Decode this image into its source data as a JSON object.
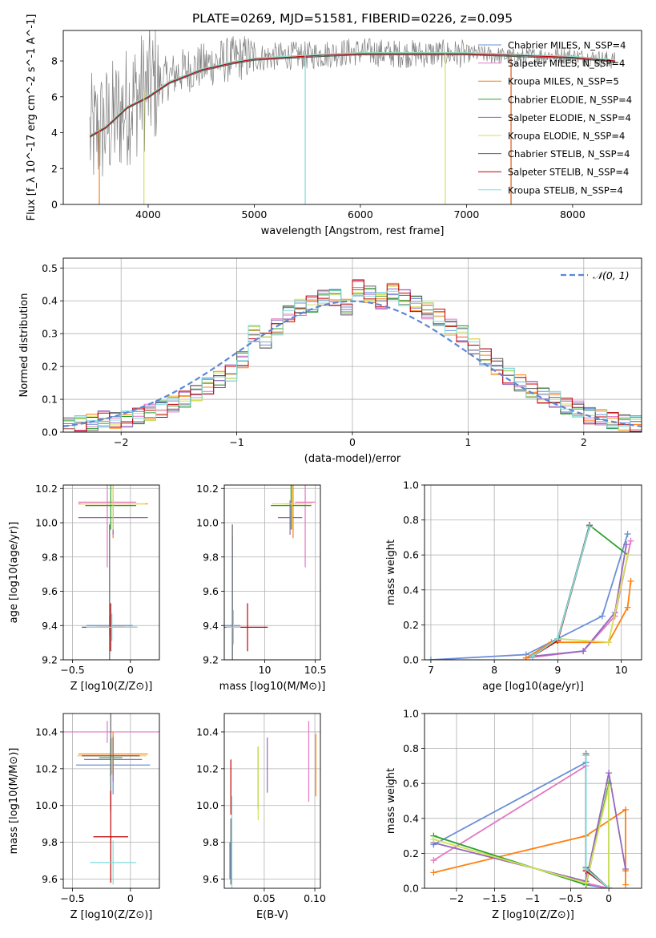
{
  "figure_title": "PLATE=0269, MJD=51581, FIBERID=0226, z=0.095",
  "colors": {
    "Chabrier MILES": "#6a8fd8",
    "Salpeter MILES": "#e377c2",
    "Kroupa MILES": "#ff7f0e",
    "Chabrier ELODIE": "#2ca02c",
    "Salpeter ELODIE": "#9467bd",
    "Kroupa ELODIE": "#d4e157",
    "Chabrier STELIB": "#606060",
    "Salpeter STELIB": "#c00000",
    "Kroupa STELIB": "#7fdcdc"
  },
  "chart_data": [
    {
      "id": "spectrum",
      "type": "line",
      "title": "",
      "xlabel": "wavelength [Angstrom, rest frame]",
      "ylabel": "Flux [f_λ 10^-17 erg cm^-2 s^-1 A^-1]",
      "xlim": [
        3200,
        8650
      ],
      "ylim": [
        0,
        9.7
      ],
      "xticks": [
        4000,
        5000,
        6000,
        7000,
        8000
      ],
      "yticks": [
        0,
        2,
        4,
        6,
        8
      ],
      "grid": false,
      "legend_position": "right",
      "legend": [
        "Chabrier MILES, N_SSP=4",
        "Salpeter MILES, N_SSP=4",
        "Kroupa MILES, N_SSP=5",
        "Chabrier ELODIE, N_SSP=4",
        "Salpeter ELODIE, N_SSP=4",
        "Kroupa ELODIE, N_SSP=4",
        "Chabrier STELIB, N_SSP=4",
        "Salpeter STELIB, N_SSP=4",
        "Kroupa STELIB, N_SSP=4"
      ],
      "data_envelope": {
        "x": [
          3450,
          3550,
          3650,
          3750,
          3850,
          3950,
          4100,
          4300,
          4500,
          4700,
          4900,
          5100,
          5300,
          5500,
          5700,
          5900,
          6100,
          6300,
          6500,
          6700,
          6900,
          7100,
          7300,
          7500,
          7700,
          7900,
          8100,
          8300,
          8400
        ],
        "y": [
          3.8,
          4.2,
          4.6,
          5.2,
          5.8,
          6.3,
          6.8,
          7.4,
          7.7,
          8.0,
          8.2,
          8.2,
          8.3,
          8.3,
          8.4,
          8.5,
          8.5,
          8.4,
          8.4,
          8.4,
          8.4,
          8.4,
          8.3,
          8.2,
          8.3,
          8.3,
          8.2,
          8.1,
          8.0
        ]
      },
      "model_line": {
        "x": [
          3450,
          3600,
          3800,
          4000,
          4200,
          4500,
          4800,
          5000,
          5300,
          5600,
          6000,
          6500,
          7000,
          7500,
          8000,
          8400
        ],
        "y": [
          3.8,
          4.3,
          5.4,
          6.0,
          6.8,
          7.5,
          7.9,
          8.1,
          8.2,
          8.3,
          8.4,
          8.4,
          8.4,
          8.3,
          8.2,
          8.0
        ]
      }
    },
    {
      "id": "residuals",
      "type": "histogram",
      "xlabel": "(data-model)/error",
      "ylabel": "Normed distribution",
      "xlim": [
        -2.5,
        2.5
      ],
      "ylim": [
        0,
        0.53
      ],
      "xticks": [
        -2,
        -1,
        0,
        1,
        2
      ],
      "yticks": [
        0.0,
        0.1,
        0.2,
        0.3,
        0.4,
        0.5
      ],
      "grid": true,
      "legend": [
        "𝒩(0, 1)"
      ],
      "legend_position": "top-right",
      "bins": [
        -2.5,
        -2.4,
        -2.3,
        -2.2,
        -2.1,
        -2.0,
        -1.9,
        -1.8,
        -1.7,
        -1.6,
        -1.5,
        -1.4,
        -1.3,
        -1.2,
        -1.1,
        -1.0,
        -0.9,
        -0.8,
        -0.7,
        -0.6,
        -0.5,
        -0.4,
        -0.3,
        -0.2,
        -0.1,
        0.0,
        0.1,
        0.2,
        0.3,
        0.4,
        0.5,
        0.6,
        0.7,
        0.8,
        0.9,
        1.0,
        1.1,
        1.2,
        1.3,
        1.4,
        1.5,
        1.6,
        1.7,
        1.8,
        1.9,
        2.0,
        2.1,
        2.2,
        2.3,
        2.4,
        2.5
      ],
      "hist_mean": [
        0.02,
        0.025,
        0.03,
        0.04,
        0.035,
        0.04,
        0.05,
        0.06,
        0.07,
        0.085,
        0.1,
        0.12,
        0.14,
        0.16,
        0.18,
        0.22,
        0.3,
        0.28,
        0.32,
        0.36,
        0.38,
        0.39,
        0.41,
        0.41,
        0.38,
        0.44,
        0.42,
        0.4,
        0.43,
        0.41,
        0.39,
        0.37,
        0.35,
        0.32,
        0.3,
        0.26,
        0.23,
        0.2,
        0.17,
        0.15,
        0.13,
        0.11,
        0.1,
        0.08,
        0.07,
        0.05,
        0.045,
        0.035,
        0.03,
        0.025
      ],
      "normal": {
        "mu": 0,
        "sigma": 1
      }
    },
    {
      "id": "age_vs_Z",
      "type": "errorbar",
      "xlabel": "Z [log10(Z/Z⊙)]",
      "ylabel": "age  [log10(age/yr)]",
      "xlim": [
        -0.58,
        0.25
      ],
      "ylim": [
        9.2,
        10.22
      ],
      "xticks": [
        -0.5,
        0.0
      ],
      "yticks": [
        9.2,
        9.4,
        9.6,
        9.8,
        10.0,
        10.2
      ],
      "grid": true,
      "points": [
        {
          "model": "Chabrier MILES",
          "x": -0.18,
          "xerr": 0.2,
          "y": 9.4,
          "yerr": 0.06
        },
        {
          "model": "Salpeter MILES",
          "x": -0.2,
          "xerr": 0.25,
          "y": 10.12,
          "yerr": 0.38
        },
        {
          "model": "Kroupa MILES",
          "x": -0.15,
          "xerr": 0.3,
          "y": 10.11,
          "yerr": 0.2
        },
        {
          "model": "Chabrier ELODIE",
          "x": -0.17,
          "xerr": 0.22,
          "y": 10.1,
          "yerr": 0.14
        },
        {
          "model": "Salpeter ELODIE",
          "x": -0.15,
          "xerr": 0.3,
          "y": 10.03,
          "yerr": 0.1
        },
        {
          "model": "Kroupa ELODIE",
          "x": -0.15,
          "xerr": 0.28,
          "y": 10.11,
          "yerr": 0.15
        },
        {
          "model": "Chabrier STELIB",
          "x": -0.18,
          "xerr": 0.24,
          "y": 9.39,
          "yerr": 0.6
        },
        {
          "model": "Salpeter STELIB",
          "x": -0.17,
          "xerr": 0.12,
          "y": 9.39,
          "yerr": 0.14
        },
        {
          "model": "Kroupa STELIB",
          "x": -0.16,
          "xerr": 0.22,
          "y": 9.39,
          "yerr": 0.08
        }
      ]
    },
    {
      "id": "age_vs_mass",
      "type": "errorbar",
      "xlabel": "mass [log10(M/M⊙)]",
      "ylabel": "",
      "xlim": [
        9.6,
        10.55
      ],
      "ylim": [
        9.2,
        10.22
      ],
      "xticks": [
        10.0,
        10.5
      ],
      "yticks": [
        9.2,
        9.4,
        9.6,
        9.8,
        10.0,
        10.2
      ],
      "grid": true,
      "points": [
        {
          "model": "Chabrier MILES",
          "x": 9.68,
          "xerr": 0.08,
          "y": 9.4,
          "yerr": 0.52
        },
        {
          "model": "Salpeter MILES",
          "x": 10.4,
          "xerr": 0.1,
          "y": 10.12,
          "yerr": 0.38
        },
        {
          "model": "Kroupa MILES",
          "x": 10.28,
          "xerr": 0.1,
          "y": 10.11,
          "yerr": 0.2
        },
        {
          "model": "Chabrier ELODIE",
          "x": 10.26,
          "xerr": 0.2,
          "y": 10.1,
          "yerr": 0.14
        },
        {
          "model": "Salpeter ELODIE",
          "x": 10.25,
          "xerr": 0.12,
          "y": 10.03,
          "yerr": 0.1
        },
        {
          "model": "Kroupa ELODIE",
          "x": 10.27,
          "xerr": 0.2,
          "y": 10.11,
          "yerr": 0.15
        },
        {
          "model": "Chabrier STELIB",
          "x": 9.68,
          "xerr": 0.08,
          "y": 9.39,
          "yerr": 0.6
        },
        {
          "model": "Salpeter STELIB",
          "x": 9.83,
          "xerr": 0.2,
          "y": 9.39,
          "yerr": 0.14
        },
        {
          "model": "Kroupa STELIB",
          "x": 9.69,
          "xerr": 0.07,
          "y": 9.39,
          "yerr": 0.1
        }
      ]
    },
    {
      "id": "mass_weight_vs_age",
      "type": "line",
      "xlabel": "age  [log10(age/yr)]",
      "ylabel": "mass weight",
      "xlim": [
        6.9,
        10.32
      ],
      "ylim": [
        0,
        1
      ],
      "xticks": [
        7,
        8,
        9,
        10
      ],
      "yticks": [
        0.0,
        0.2,
        0.4,
        0.6,
        0.8,
        1.0
      ],
      "grid": true,
      "series": [
        {
          "model": "Chabrier MILES",
          "x": [
            7.0,
            8.5,
            9.7,
            10.1
          ],
          "y": [
            0.0,
            0.03,
            0.25,
            0.72
          ]
        },
        {
          "model": "Salpeter MILES",
          "x": [
            8.5,
            9.4,
            9.9,
            10.15
          ],
          "y": [
            0.01,
            0.05,
            0.25,
            0.68
          ]
        },
        {
          "model": "Kroupa MILES",
          "x": [
            8.5,
            8.9,
            9.8,
            10.1,
            10.15
          ],
          "y": [
            0.01,
            0.1,
            0.1,
            0.3,
            0.45
          ]
        },
        {
          "model": "Chabrier ELODIE",
          "x": [
            8.6,
            9.0,
            9.5,
            10.1
          ],
          "y": [
            0.02,
            0.12,
            0.77,
            0.6
          ]
        },
        {
          "model": "Salpeter ELODIE",
          "x": [
            8.6,
            9.4,
            9.9,
            10.08
          ],
          "y": [
            0.02,
            0.05,
            0.27,
            0.66
          ]
        },
        {
          "model": "Kroupa ELODIE",
          "x": [
            8.6,
            9.0,
            9.8,
            10.1
          ],
          "y": [
            0.02,
            0.12,
            0.1,
            0.6
          ]
        },
        {
          "model": "Chabrier STELIB",
          "x": [
            8.6,
            9.0,
            9.5
          ],
          "y": [
            0.02,
            0.12,
            0.77
          ]
        },
        {
          "model": "Salpeter STELIB",
          "x": [
            8.6,
            9.0,
            9.5
          ],
          "y": [
            0.02,
            0.11,
            0.76
          ]
        },
        {
          "model": "Kroupa STELIB",
          "x": [
            8.6,
            9.0,
            9.5
          ],
          "y": [
            0.02,
            0.12,
            0.76
          ]
        }
      ]
    },
    {
      "id": "mass_vs_Z",
      "type": "errorbar",
      "xlabel": "Z [log10(Z/Z⊙)]",
      "ylabel": "mass [log10(M/M⊙)]",
      "xlim": [
        -0.58,
        0.25
      ],
      "ylim": [
        9.55,
        10.5
      ],
      "xticks": [
        -0.5,
        0.0
      ],
      "yticks": [
        9.6,
        9.8,
        10.0,
        10.2,
        10.4
      ],
      "grid": true,
      "points": [
        {
          "model": "Chabrier MILES",
          "x": -0.15,
          "xerr": 0.32,
          "y": 10.22,
          "yerr": 0.16
        },
        {
          "model": "Salpeter MILES",
          "x": -0.2,
          "xerr": 0.45,
          "y": 10.4,
          "yerr": 0.06
        },
        {
          "model": "Kroupa MILES",
          "x": -0.15,
          "xerr": 0.3,
          "y": 10.28,
          "yerr": 0.12
        },
        {
          "model": "Chabrier ELODIE",
          "x": -0.17,
          "xerr": 0.1,
          "y": 10.26,
          "yerr": 0.1
        },
        {
          "model": "Salpeter ELODIE",
          "x": -0.15,
          "xerr": 0.25,
          "y": 10.25,
          "yerr": 0.12
        },
        {
          "model": "Kroupa ELODIE",
          "x": -0.16,
          "xerr": 0.3,
          "y": 10.27,
          "yerr": 0.1
        },
        {
          "model": "Chabrier STELIB",
          "x": -0.17,
          "xerr": 0.25,
          "y": 10.27,
          "yerr": 0.3
        },
        {
          "model": "Salpeter STELIB",
          "x": -0.17,
          "xerr": 0.15,
          "y": 9.83,
          "yerr": 0.25
        },
        {
          "model": "Kroupa STELIB",
          "x": -0.15,
          "xerr": 0.2,
          "y": 9.69,
          "yerr": 0.12
        }
      ]
    },
    {
      "id": "mass_vs_EBV",
      "type": "errorbar",
      "xlabel": "E(B-V)",
      "ylabel": "",
      "xlim": [
        0.0105,
        0.1055
      ],
      "ylim": [
        9.55,
        10.5
      ],
      "xticks": [
        0.05,
        0.1
      ],
      "xtick_labels": [
        "0.05",
        "0.10"
      ],
      "yticks": [
        9.6,
        9.8,
        10.0,
        10.2,
        10.4
      ],
      "grid": true,
      "points": [
        {
          "model": "Chabrier MILES",
          "x": 0.016,
          "xerr": 0,
          "y": 9.7,
          "yerr": 0.1
        },
        {
          "model": "Salpeter MILES",
          "x": 0.094,
          "xerr": 0,
          "y": 10.24,
          "yerr": 0.22
        },
        {
          "model": "Kroupa MILES",
          "x": 0.101,
          "xerr": 0,
          "y": 10.22,
          "yerr": 0.17
        },
        {
          "model": "Chabrier ELODIE",
          "x": 0.044,
          "xerr": 0,
          "y": 10.15,
          "yerr": 0.17
        },
        {
          "model": "Salpeter ELODIE",
          "x": 0.053,
          "xerr": 0,
          "y": 10.22,
          "yerr": 0.15
        },
        {
          "model": "Kroupa ELODIE",
          "x": 0.044,
          "xerr": 0,
          "y": 10.12,
          "yerr": 0.2
        },
        {
          "model": "Chabrier STELIB",
          "x": 0.017,
          "xerr": 0,
          "y": 9.75,
          "yerr": 0.18
        },
        {
          "model": "Salpeter STELIB",
          "x": 0.017,
          "xerr": 0,
          "y": 10.1,
          "yerr": 0.15
        },
        {
          "model": "Kroupa STELIB",
          "x": 0.018,
          "xerr": 0,
          "y": 9.8,
          "yerr": 0.25
        }
      ]
    },
    {
      "id": "mass_weight_vs_Z",
      "type": "line",
      "xlabel": "Z [log10(Z/Z⊙)]",
      "ylabel": "mass weight",
      "xlim": [
        -2.42,
        0.43
      ],
      "ylim": [
        0,
        1
      ],
      "xticks": [
        -2.0,
        -1.5,
        -1.0,
        -0.5,
        0.0
      ],
      "yticks": [
        0.0,
        0.2,
        0.4,
        0.6,
        0.8,
        1.0
      ],
      "grid": true,
      "series": [
        {
          "model": "Chabrier MILES",
          "x": [
            -2.3,
            -0.3,
            -0.3,
            0.0
          ],
          "y": [
            0.25,
            0.72,
            0.02,
            0.0
          ]
        },
        {
          "model": "Salpeter MILES",
          "x": [
            -2.3,
            -0.3,
            -0.3,
            0.0
          ],
          "y": [
            0.16,
            0.7,
            0.03,
            0.0
          ]
        },
        {
          "model": "Kroupa MILES",
          "x": [
            -2.3,
            -0.3,
            0.22,
            0.22,
            0.22
          ],
          "y": [
            0.09,
            0.3,
            0.45,
            0.1,
            0.02
          ]
        },
        {
          "model": "Chabrier ELODIE",
          "x": [
            -2.3,
            -0.3,
            0.0,
            0.0
          ],
          "y": [
            0.3,
            0.02,
            0.6,
            0.0
          ]
        },
        {
          "model": "Salpeter ELODIE",
          "x": [
            -2.3,
            -0.3,
            0.0,
            0.22
          ],
          "y": [
            0.26,
            0.04,
            0.66,
            0.11
          ]
        },
        {
          "model": "Kroupa ELODIE",
          "x": [
            -2.3,
            -0.3,
            0.0,
            0.0
          ],
          "y": [
            0.28,
            0.03,
            0.58,
            0.0
          ]
        },
        {
          "model": "Chabrier STELIB",
          "x": [
            -0.3,
            -0.3,
            0.0
          ],
          "y": [
            0.77,
            0.12,
            0.0
          ]
        },
        {
          "model": "Salpeter STELIB",
          "x": [
            -0.3,
            -0.3,
            0.0
          ],
          "y": [
            0.76,
            0.1,
            0.0
          ]
        },
        {
          "model": "Kroupa STELIB",
          "x": [
            -0.3,
            -0.3,
            0.0
          ],
          "y": [
            0.76,
            0.11,
            0.0
          ]
        }
      ]
    }
  ]
}
